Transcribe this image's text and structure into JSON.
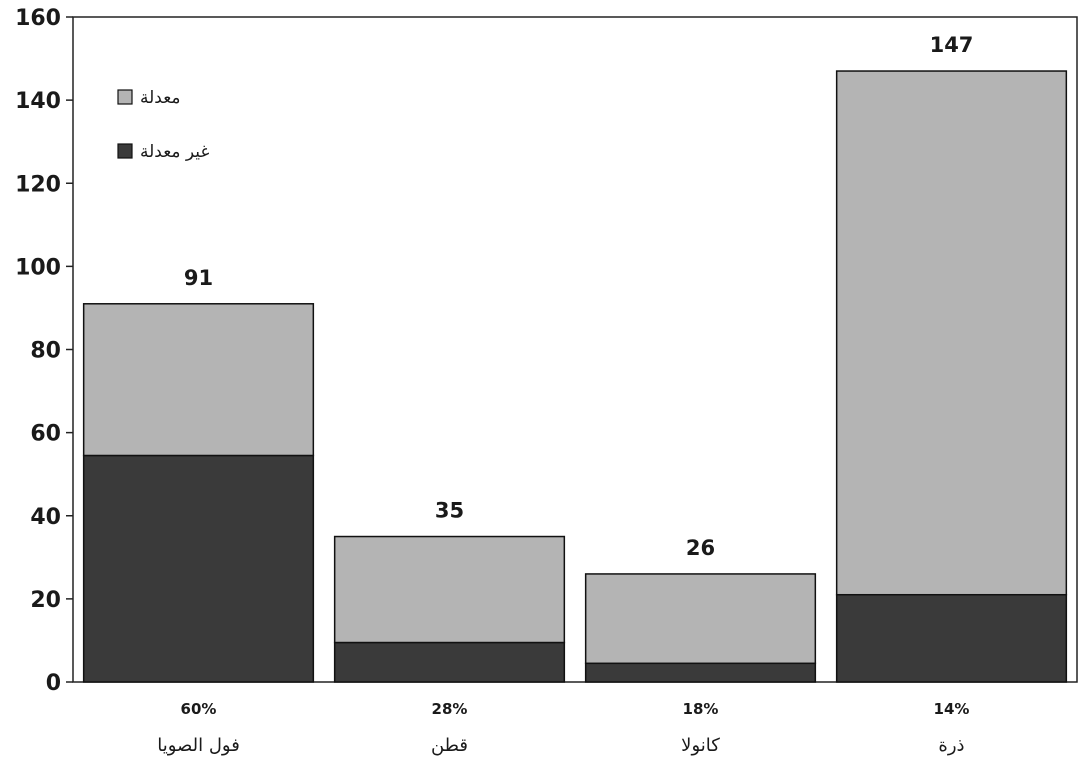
{
  "chart_data": {
    "type": "bar",
    "stacked": true,
    "categories": [
      "فول الصويا",
      "قطن",
      "كانولا",
      "ذرة"
    ],
    "percent_labels": [
      "60%",
      "28%",
      "18%",
      "14%"
    ],
    "totals": [
      91,
      35,
      26,
      147
    ],
    "series": [
      {
        "name": "غير معدلة",
        "values": [
          54.5,
          9.5,
          4.5,
          21
        ],
        "color": "#3a3a3a"
      },
      {
        "name": "معدلة",
        "values": [
          36.5,
          25.5,
          21.5,
          126
        ],
        "color": "#b4b4b4"
      }
    ],
    "ylim": [
      0,
      160
    ],
    "yticks": [
      0,
      20,
      40,
      60,
      80,
      100,
      120,
      140,
      160
    ],
    "legend_position": "top-left",
    "grid": false
  }
}
